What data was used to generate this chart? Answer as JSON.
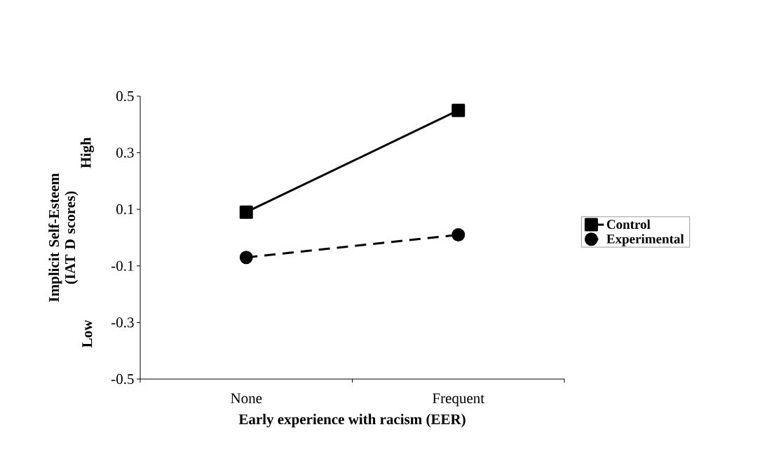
{
  "chart_data": {
    "type": "line",
    "xlabel": "Early experience with racism (EER)",
    "ylabel": "Implicit Self-Esteem (IAT D scores)",
    "annotations": [
      "High",
      "Low"
    ],
    "categories": [
      "None",
      "Frequent"
    ],
    "series": [
      {
        "name": "Control",
        "color": "#000000",
        "values": [
          0.09,
          0.45
        ],
        "marker": "square",
        "line_style": "solid"
      },
      {
        "name": "Experimental",
        "color": "#000000",
        "values": [
          -0.07,
          0.01
        ],
        "marker": "circle",
        "line_style": "dashed"
      }
    ],
    "ylim": [
      -0.5,
      0.5
    ],
    "yticks": [
      -0.5,
      -0.3,
      -0.1,
      0.1,
      0.3,
      0.5
    ],
    "grid": false,
    "legend": "right"
  }
}
